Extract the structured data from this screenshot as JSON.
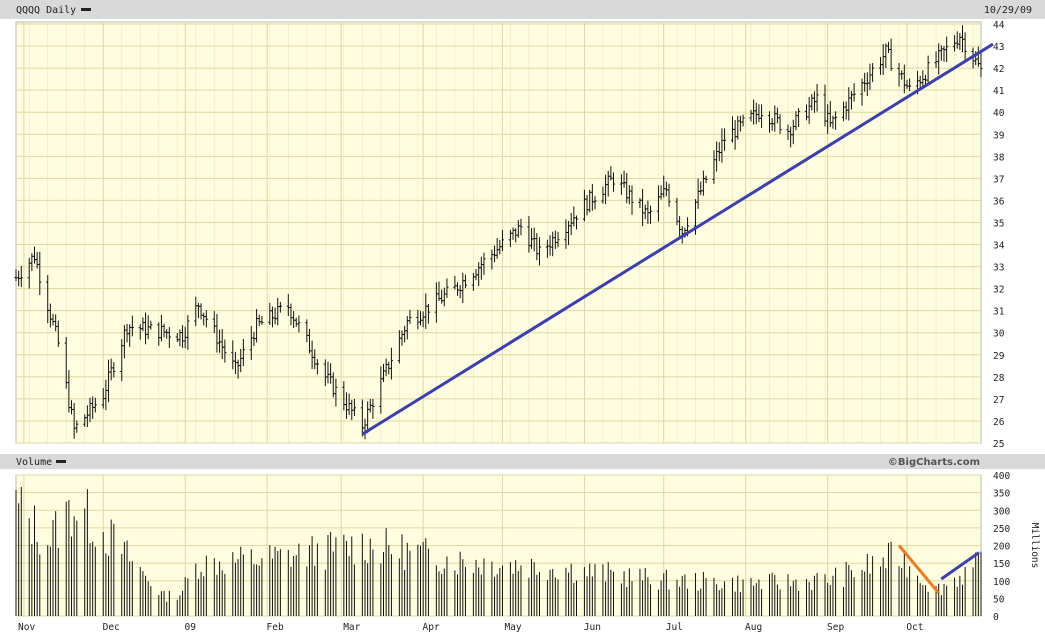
{
  "header": {
    "title": "QQQQ Daily",
    "date": "10/29/09",
    "volume_label": "Volume",
    "credit": "©BigCharts.com"
  },
  "colors": {
    "panel_bg": "#fefde0",
    "grid": "#ddd9a0",
    "header_bg": "#d8d8d8",
    "bars": "#111111",
    "trendline": "#3b3fb0",
    "volume_downtrend": "#f07a1e"
  },
  "chart_data": [
    {
      "type": "ohlc",
      "title": "QQQQ Daily",
      "x_ticks": [
        "Nov",
        "Dec",
        "09",
        "Feb",
        "Mar",
        "Apr",
        "May",
        "Jun",
        "Jul",
        "Aug",
        "Sep",
        "Oct"
      ],
      "y_ticks": [
        25,
        26,
        27,
        28,
        29,
        30,
        31,
        32,
        33,
        34,
        35,
        36,
        37,
        38,
        39,
        40,
        41,
        42,
        43,
        44
      ],
      "ylim": [
        25,
        44
      ],
      "xlim": [
        "2008-10-29",
        "2009-10-29"
      ],
      "grid": true,
      "axis_side": "right",
      "key_closes": [
        {
          "date": "2008-10-29",
          "close": 32.5
        },
        {
          "date": "2008-11-05",
          "close": 33.5
        },
        {
          "date": "2008-11-14",
          "close": 29.5
        },
        {
          "date": "2008-11-20",
          "close": 25.6
        },
        {
          "date": "2008-12-01",
          "close": 27.2
        },
        {
          "date": "2008-12-10",
          "close": 30.3
        },
        {
          "date": "2008-12-31",
          "close": 29.9
        },
        {
          "date": "2009-01-06",
          "close": 31.3
        },
        {
          "date": "2009-01-20",
          "close": 28.3
        },
        {
          "date": "2009-01-28",
          "close": 30.3
        },
        {
          "date": "2009-02-09",
          "close": 31.2
        },
        {
          "date": "2009-02-23",
          "close": 28.0
        },
        {
          "date": "2009-03-09",
          "close": 25.8
        },
        {
          "date": "2009-03-26",
          "close": 30.5
        },
        {
          "date": "2009-04-13",
          "close": 32.0
        },
        {
          "date": "2009-05-08",
          "close": 34.8
        },
        {
          "date": "2009-05-15",
          "close": 33.6
        },
        {
          "date": "2009-06-01",
          "close": 35.8
        },
        {
          "date": "2009-06-12",
          "close": 37.0
        },
        {
          "date": "2009-06-25",
          "close": 35.3
        },
        {
          "date": "2009-07-02",
          "close": 36.5
        },
        {
          "date": "2009-07-08",
          "close": 34.6
        },
        {
          "date": "2009-07-24",
          "close": 38.8
        },
        {
          "date": "2009-08-07",
          "close": 40.1
        },
        {
          "date": "2009-08-17",
          "close": 39.2
        },
        {
          "date": "2009-08-28",
          "close": 40.6
        },
        {
          "date": "2009-09-02",
          "close": 39.4
        },
        {
          "date": "2009-09-23",
          "close": 42.7
        },
        {
          "date": "2009-10-02",
          "close": 41.0
        },
        {
          "date": "2009-10-21",
          "close": 43.5
        },
        {
          "date": "2009-10-29",
          "close": 41.9
        }
      ],
      "trendline": [
        {
          "date": "2009-03-09",
          "value": 25.4
        },
        {
          "date": "2009-10-29",
          "value": 43.0
        }
      ]
    },
    {
      "type": "bar",
      "title": "Volume",
      "y_label": "Millions",
      "y_ticks": [
        0,
        50,
        100,
        150,
        200,
        250,
        300,
        350,
        400
      ],
      "ylim": [
        0,
        400
      ],
      "xlim": [
        "2008-10-29",
        "2009-10-29"
      ],
      "axis_side": "right",
      "key_volumes": [
        {
          "date": "2008-10-29",
          "volume": 340
        },
        {
          "date": "2008-11-10",
          "volume": 230
        },
        {
          "date": "2008-11-20",
          "volume": 340
        },
        {
          "date": "2008-12-05",
          "volume": 230
        },
        {
          "date": "2008-12-24",
          "volume": 60
        },
        {
          "date": "2008-12-30",
          "volume": 70
        },
        {
          "date": "2009-01-06",
          "volume": 160
        },
        {
          "date": "2009-02-06",
          "volume": 180
        },
        {
          "date": "2009-03-10",
          "volume": 220
        },
        {
          "date": "2009-04-15",
          "volume": 170
        },
        {
          "date": "2009-05-20",
          "volume": 150
        },
        {
          "date": "2009-06-30",
          "volume": 110
        },
        {
          "date": "2009-08-03",
          "volume": 100
        },
        {
          "date": "2009-09-01",
          "volume": 110
        },
        {
          "date": "2009-09-28",
          "volume": 185
        },
        {
          "date": "2009-10-12",
          "volume": 80
        },
        {
          "date": "2009-10-29",
          "volume": 160
        }
      ],
      "annotations": [
        {
          "type": "downtrend",
          "from": {
            "date": "2009-09-28",
            "value": 200
          },
          "to": {
            "date": "2009-10-13",
            "value": 65
          }
        },
        {
          "type": "uptrend",
          "from": {
            "date": "2009-10-14",
            "value": 105
          },
          "to": {
            "date": "2009-10-29",
            "value": 180
          }
        }
      ]
    }
  ]
}
